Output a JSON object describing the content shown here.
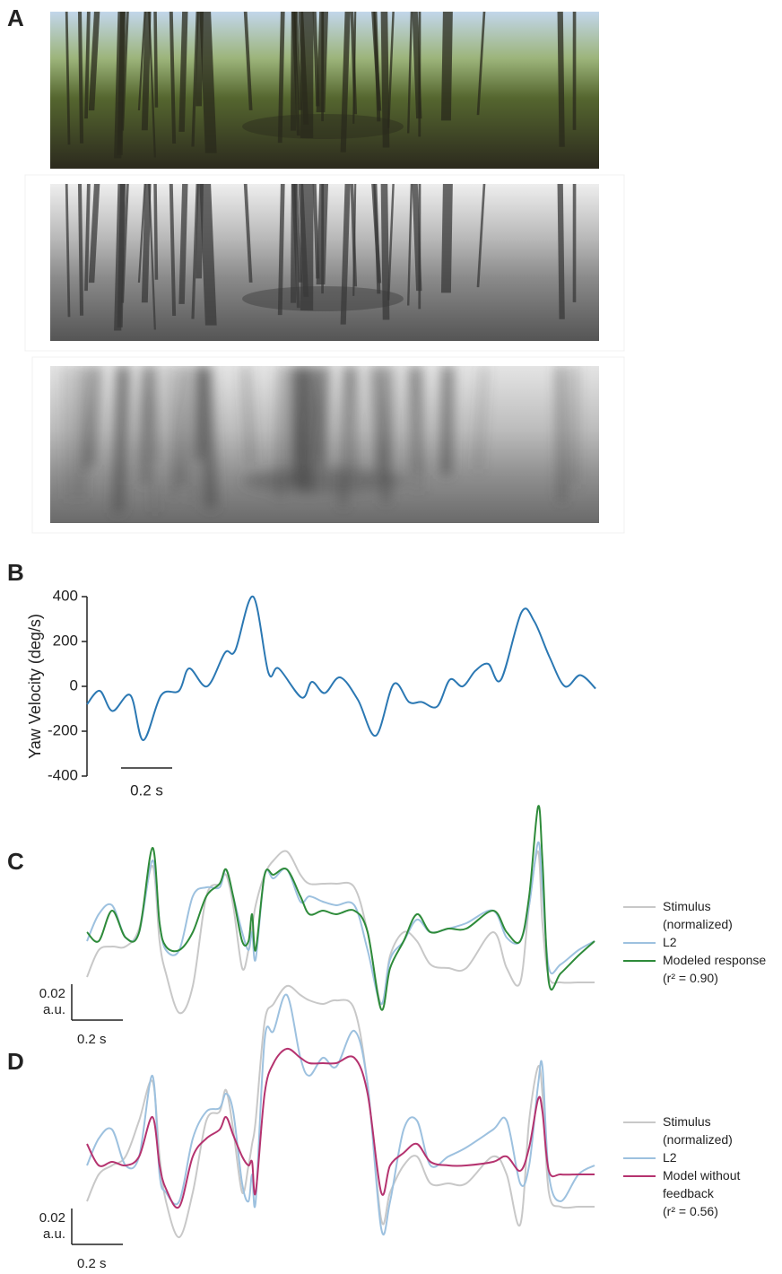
{
  "panel_a": {
    "label": "A"
  },
  "chart_data": [
    {
      "type": "line",
      "label": "B",
      "ylabel": "Yaw Velocity (deg/s)",
      "x": [
        0,
        0.05,
        0.1,
        0.17,
        0.22,
        0.29,
        0.36,
        0.4,
        0.47,
        0.54,
        0.58,
        0.65,
        0.71,
        0.75,
        0.84,
        0.88,
        0.93,
        0.99,
        1.06,
        1.13,
        1.2,
        1.26,
        1.31,
        1.37,
        1.42,
        1.47,
        1.52,
        1.57,
        1.62,
        1.7,
        1.75,
        1.81,
        1.87,
        1.93,
        1.99
      ],
      "values": [
        -80,
        -20,
        -110,
        -40,
        -240,
        -40,
        -20,
        80,
        0,
        150,
        160,
        400,
        60,
        80,
        -50,
        20,
        -30,
        40,
        -60,
        -220,
        10,
        -70,
        -70,
        -90,
        30,
        0,
        70,
        100,
        30,
        330,
        290,
        130,
        0,
        50,
        -10
      ],
      "color": "#2b78b3",
      "xlim": [
        0,
        2
      ],
      "ylim": [
        -400,
        400
      ],
      "yticks": [
        -400,
        -200,
        0,
        200,
        400
      ],
      "scale_bar": {
        "length": 0.2,
        "label": "0.2 s"
      }
    },
    {
      "type": "line",
      "label": "C",
      "x": [
        0,
        0.046,
        0.098,
        0.151,
        0.204,
        0.256,
        0.284,
        0.309,
        0.361,
        0.414,
        0.467,
        0.519,
        0.544,
        0.572,
        0.607,
        0.632,
        0.646,
        0.66,
        0.695,
        0.73,
        0.782,
        0.835,
        0.87,
        0.923,
        0.975,
        1.046,
        1.098,
        1.151,
        1.186,
        1.239,
        1.291,
        1.344,
        1.414,
        1.484,
        1.589,
        1.642,
        1.695,
        1.73,
        1.765,
        1.782,
        1.807,
        1.853,
        1.923,
        1.986
      ],
      "series": [
        {
          "name": "Stimulus\n(normalized)",
          "color": "#c8c8c8",
          "values": [
            0.024,
            0.039,
            0.041,
            0.041,
            0.051,
            0.086,
            0.044,
            0.026,
            0.004,
            0.019,
            0.069,
            0.076,
            0.081,
            0.064,
            0.029,
            0.039,
            0.051,
            0.064,
            0.081,
            0.089,
            0.094,
            0.081,
            0.076,
            0.076,
            0.076,
            0.074,
            0.049,
            0.009,
            0.036,
            0.049,
            0.044,
            0.031,
            0.029,
            0.029,
            0.049,
            0.029,
            0.021,
            0.064,
            0.094,
            0.054,
            0.024,
            0.021,
            0.021,
            0.021
          ]
        },
        {
          "name": "L2",
          "color": "#9dc1df",
          "values": [
            0.044,
            0.059,
            0.064,
            0.046,
            0.049,
            0.089,
            0.054,
            0.039,
            0.039,
            0.069,
            0.074,
            0.074,
            0.084,
            0.069,
            0.049,
            0.039,
            0.049,
            0.034,
            0.081,
            0.079,
            0.084,
            0.066,
            0.069,
            0.066,
            0.064,
            0.064,
            0.039,
            0.009,
            0.034,
            0.044,
            0.056,
            0.049,
            0.051,
            0.054,
            0.061,
            0.046,
            0.044,
            0.064,
            0.099,
            0.074,
            0.029,
            0.031,
            0.039,
            0.044
          ]
        },
        {
          "name": "Modeled response\n(r² = 0.90)",
          "color": "#2e8b3a",
          "values": [
            0.049,
            0.044,
            0.061,
            0.046,
            0.049,
            0.096,
            0.054,
            0.041,
            0.039,
            0.049,
            0.069,
            0.076,
            0.084,
            0.069,
            0.044,
            0.044,
            0.059,
            0.039,
            0.081,
            0.081,
            0.084,
            0.069,
            0.059,
            0.061,
            0.059,
            0.061,
            0.049,
            0.006,
            0.029,
            0.044,
            0.059,
            0.049,
            0.051,
            0.051,
            0.061,
            0.049,
            0.044,
            0.069,
            0.119,
            0.089,
            0.021,
            0.026,
            0.036,
            0.044
          ]
        }
      ],
      "xlim": [
        0,
        2
      ],
      "ylim": [
        0,
        0.12
      ],
      "x_scale_bar": {
        "length": 0.2,
        "label": "0.2 s"
      },
      "y_scale_bar": {
        "length": 0.02,
        "label": "0.02\na.u."
      }
    },
    {
      "type": "line",
      "label": "D",
      "x": [
        0,
        0.046,
        0.098,
        0.151,
        0.204,
        0.256,
        0.284,
        0.309,
        0.361,
        0.414,
        0.467,
        0.519,
        0.544,
        0.572,
        0.607,
        0.632,
        0.646,
        0.66,
        0.695,
        0.73,
        0.782,
        0.835,
        0.87,
        0.923,
        0.975,
        1.046,
        1.098,
        1.151,
        1.186,
        1.239,
        1.291,
        1.344,
        1.414,
        1.484,
        1.589,
        1.642,
        1.695,
        1.73,
        1.765,
        1.782,
        1.807,
        1.853,
        1.923,
        1.986
      ],
      "series": [
        {
          "name": "Stimulus\n(normalized)",
          "color": "#c8c8c8",
          "values": [
            0.024,
            0.039,
            0.044,
            0.049,
            0.069,
            0.091,
            0.049,
            0.024,
            0.004,
            0.029,
            0.069,
            0.074,
            0.086,
            0.064,
            0.029,
            0.044,
            0.056,
            0.069,
            0.124,
            0.134,
            0.144,
            0.139,
            0.136,
            0.134,
            0.136,
            0.131,
            0.089,
            0.014,
            0.029,
            0.044,
            0.049,
            0.034,
            0.034,
            0.034,
            0.049,
            0.039,
            0.011,
            0.069,
            0.099,
            0.084,
            0.029,
            0.021,
            0.021,
            0.021
          ]
        },
        {
          "name": "L2",
          "color": "#9dc1df",
          "values": [
            0.044,
            0.059,
            0.064,
            0.044,
            0.049,
            0.094,
            0.039,
            0.029,
            0.024,
            0.059,
            0.074,
            0.076,
            0.084,
            0.074,
            0.034,
            0.024,
            0.039,
            0.024,
            0.114,
            0.119,
            0.139,
            0.104,
            0.094,
            0.104,
            0.099,
            0.119,
            0.089,
            0.009,
            0.024,
            0.064,
            0.069,
            0.044,
            0.049,
            0.054,
            0.064,
            0.069,
            0.034,
            0.044,
            0.089,
            0.099,
            0.039,
            0.024,
            0.039,
            0.044
          ]
        },
        {
          "name": "Model without\nfeedback\n(r² = 0.56)",
          "color": "#b5336f",
          "values": [
            0.056,
            0.044,
            0.046,
            0.044,
            0.049,
            0.071,
            0.044,
            0.031,
            0.021,
            0.049,
            0.059,
            0.064,
            0.071,
            0.061,
            0.049,
            0.044,
            0.046,
            0.029,
            0.084,
            0.101,
            0.109,
            0.104,
            0.101,
            0.101,
            0.101,
            0.104,
            0.084,
            0.029,
            0.044,
            0.051,
            0.056,
            0.046,
            0.044,
            0.044,
            0.046,
            0.049,
            0.041,
            0.054,
            0.081,
            0.074,
            0.041,
            0.039,
            0.039,
            0.039
          ]
        }
      ],
      "xlim": [
        0,
        2
      ],
      "ylim": [
        0,
        0.145
      ],
      "x_scale_bar": {
        "length": 0.2,
        "label": "0.2 s"
      },
      "y_scale_bar": {
        "length": 0.02,
        "label": "0.02\na.u."
      }
    }
  ]
}
